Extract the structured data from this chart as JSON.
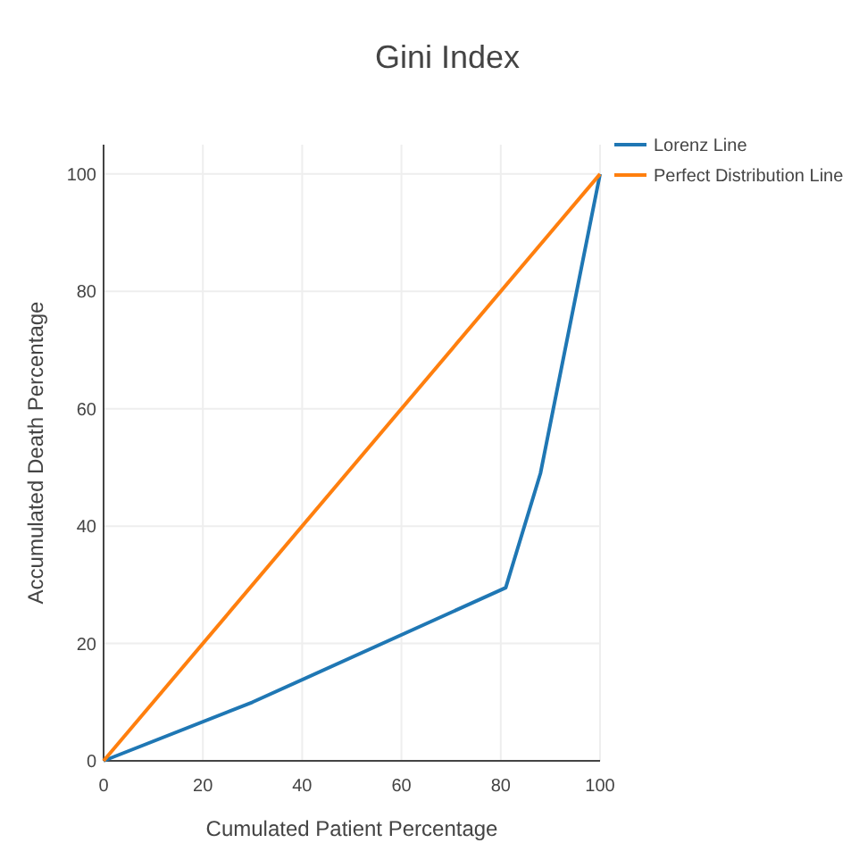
{
  "chart_data": {
    "type": "line",
    "title": "Gini Index",
    "xlabel": "Cumulated Patient Percentage",
    "ylabel": "Accumulated Death Percentage",
    "xlim": [
      0,
      100
    ],
    "ylim": [
      0,
      105
    ],
    "xticks": [
      0,
      20,
      40,
      60,
      80,
      100
    ],
    "yticks": [
      0,
      20,
      40,
      60,
      80,
      100
    ],
    "grid": true,
    "legend": "right",
    "series": [
      {
        "name": "Lorenz Line",
        "color": "#1f77b4",
        "x": [
          0,
          30,
          81,
          88,
          100
        ],
        "values": [
          0,
          10,
          29.5,
          49,
          100
        ]
      },
      {
        "name": "Perfect Distribution Line",
        "color": "#ff7f0e",
        "x": [
          0,
          100
        ],
        "values": [
          0,
          100
        ]
      }
    ]
  }
}
